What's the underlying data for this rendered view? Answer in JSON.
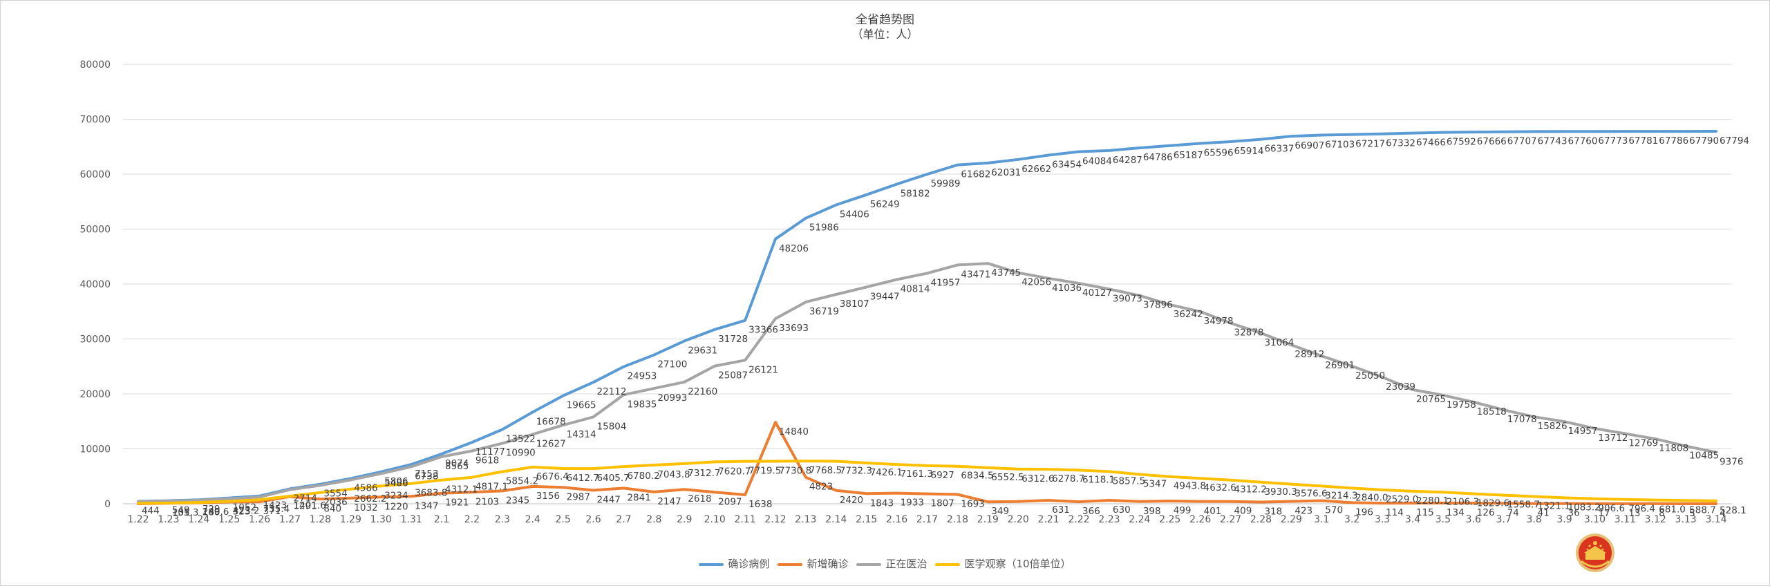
{
  "chart_data": {
    "type": "line",
    "title": "全省趋势图",
    "subtitle": "（单位：人）",
    "ylim": [
      0,
      80000
    ],
    "yticks": [
      0,
      10000,
      20000,
      30000,
      40000,
      50000,
      60000,
      70000,
      80000
    ],
    "grid": true,
    "legend_position": "bottom",
    "categories": [
      "1.22",
      "1.23",
      "1.24",
      "1.25",
      "1.26",
      "1.27",
      "1.28",
      "1.29",
      "1.30",
      "1.31",
      "2.1",
      "2.2",
      "2.3",
      "2.4",
      "2.5",
      "2.6",
      "2.7",
      "2.8",
      "2.9",
      "2.10",
      "2.11",
      "2.12",
      "2.13",
      "2.14",
      "2.15",
      "2.16",
      "2.17",
      "2.18",
      "2.19",
      "2.20",
      "2.21",
      "2.22",
      "2.23",
      "2.24",
      "2.25",
      "2.26",
      "2.27",
      "2.28",
      "2.29",
      "3.1",
      "3.2",
      "3.3",
      "3.4",
      "3.5",
      "3.6",
      "3.7",
      "3.8",
      "3.9",
      "3.10",
      "3.11",
      "3.12",
      "3.13",
      "3.14"
    ],
    "series": [
      {
        "name": "确诊病例",
        "color": "#5B9BD5",
        "values": [
          444,
          549,
          729,
          1052,
          1423,
          2714,
          3554,
          4586,
          5806,
          7153,
          9074,
          11177,
          13522,
          16678,
          19665,
          22112,
          24953,
          27100,
          29631,
          31728,
          33366,
          48206,
          51986,
          54406,
          56249,
          58182,
          59989,
          61682,
          62031,
          62662,
          63454,
          64084,
          64287,
          64786,
          65187,
          65596,
          65914,
          66337,
          66907,
          67103,
          67217,
          67332,
          67466,
          67592,
          67666,
          67707,
          67743,
          67760,
          67773,
          67781,
          67786,
          67790,
          67794
        ],
        "labels": [
          "444",
          "549",
          "729",
          "1052",
          "1423",
          "2714",
          "3554",
          "4586",
          "5806",
          "7153",
          "9074",
          "11177",
          "13522",
          "16678",
          "19665",
          "22112",
          "24953",
          "27100",
          "29631",
          "31728",
          "33366",
          "48206",
          "51986",
          "54406",
          "56249",
          "58182",
          "59989",
          "61682",
          "62031",
          "62662",
          "63454",
          "64084",
          "64287",
          "64786",
          "65187",
          "65596",
          "65914",
          "66337",
          "66907",
          "67103",
          "67217",
          "67332",
          "67466",
          "67592",
          "67666",
          "67707",
          "67743",
          "67760",
          "67773",
          "67781",
          "67786",
          "67790",
          "67794"
        ]
      },
      {
        "name": "新增确诊",
        "color": "#ED7D31",
        "values": [
          0,
          105,
          180,
          323,
          371,
          1291,
          840,
          1032,
          1220,
          1347,
          1921,
          2103,
          2345,
          3156,
          2987,
          2447,
          2841,
          2147,
          2618,
          2097,
          1638,
          14840,
          4823,
          2420,
          1843,
          1933,
          1807,
          1693,
          349,
          411,
          631,
          366,
          630,
          398,
          499,
          401,
          409,
          318,
          423,
          570,
          196,
          114,
          115,
          134,
          126,
          74,
          41,
          36,
          17,
          13,
          8,
          5,
          4
        ],
        "labels": [
          "",
          "105",
          "180",
          "323",
          "371",
          "1291",
          "840",
          "1032",
          "1220",
          "1347",
          "1921",
          "2103",
          "2345",
          "3156",
          "2987",
          "2447",
          "2841",
          "2147",
          "2618",
          "2097",
          "1638",
          "14840",
          "4823",
          "2420",
          "1843",
          "1933",
          "1807",
          "1693",
          "349",
          "",
          "631",
          "366",
          "630",
          "398",
          "499",
          "401",
          "409",
          "318",
          "423",
          "570",
          "196",
          "114",
          "115",
          "134",
          "126",
          "74",
          "41",
          "36",
          "17",
          "13",
          "8",
          "5",
          "4"
        ]
      },
      {
        "name": "正在医治",
        "color": "#A5A5A5",
        "values": [
          400,
          493,
          637,
          915,
          1229,
          2567,
          3349,
          4334,
          5486,
          6738,
          8565,
          9618,
          10990,
          12627,
          14314,
          15804,
          19835,
          20993,
          22160,
          25087,
          26121,
          33693,
          36719,
          38107,
          39447,
          40814,
          41957,
          43471,
          43745,
          42056,
          41036,
          40127,
          39073,
          37896,
          36242,
          34978,
          32878,
          31064,
          28912,
          26901,
          25050,
          23039,
          20765,
          19758,
          18518,
          17078,
          15826,
          14957,
          13712,
          12769,
          11808,
          10485,
          9376
        ],
        "labels": [
          "",
          "",
          "",
          "",
          "",
          "",
          "",
          "",
          "5486",
          "6738",
          "8565",
          "9618",
          "10990",
          "12627",
          "14314",
          "15804",
          "19835",
          "20993",
          "22160",
          "25087",
          "26121",
          "33693",
          "36719",
          "38107",
          "39447",
          "40814",
          "41957",
          "43471",
          "43745",
          "42056",
          "41036",
          "40127",
          "39073",
          "37896",
          "36242",
          "34978",
          "32878",
          "31064",
          "28912",
          "26901",
          "25050",
          "23039",
          "20765",
          "19758",
          "18518",
          "17078",
          "15826",
          "14957",
          "13712",
          "12769",
          "11808",
          "10485",
          "9376"
        ]
      },
      {
        "name": "医学观察（10倍单位）",
        "color": "#FFC000",
        "values": [
          90,
          131.3,
          249.6,
          423.2,
          735.4,
          1401.6,
          2036,
          2662.2,
          3234,
          3683.8,
          4312.1,
          4817.1,
          5854.2,
          6676.4,
          6412.7,
          6405.7,
          6780.2,
          7043.8,
          7312.7,
          7620.7,
          7719.5,
          7730.8,
          7768.5,
          7732.3,
          7426.1,
          7161.3,
          6927,
          6834.5,
          6552.5,
          6312.6,
          6278.7,
          6118.1,
          5857.5,
          5347,
          4943.8,
          4632.6,
          4312.2,
          3930.3,
          3576.6,
          3214.3,
          2840.0,
          2529.0,
          2280.1,
          2106.3,
          1829.6,
          1558.7,
          1321.1,
          1083.2,
          906.6,
          796.4,
          681.0,
          588.7,
          528.1
        ],
        "labels": [
          "",
          "131.3",
          "249.6",
          "423.2",
          "735.4",
          "1401.6",
          "2036",
          "2662.2",
          "3234",
          "3683.8",
          "4312.1",
          "4817.1",
          "5854.2",
          "6676.4",
          "6412.7",
          "6405.7",
          "6780.2",
          "7043.8",
          "7312.7",
          "7620.7",
          "7719.5",
          "7730.8",
          "7768.5",
          "7732.3",
          "7426.1",
          "7161.3",
          "6927",
          "6834.5",
          "6552.5",
          "6312.6",
          "6278.7",
          "6118.1",
          "5857.5",
          "5347",
          "4943.8",
          "4632.6",
          "4312.2",
          "3930.3",
          "3576.6",
          "3214.3",
          "2840.0",
          "2529.0",
          "2280.1",
          "2106.3",
          "1829.6",
          "1558.7",
          "1321.1",
          "1083.2",
          "906.6",
          "796.4",
          "681.0",
          "588.7",
          "528.1"
        ]
      }
    ]
  },
  "emblem_icon": "national-emblem-icon"
}
